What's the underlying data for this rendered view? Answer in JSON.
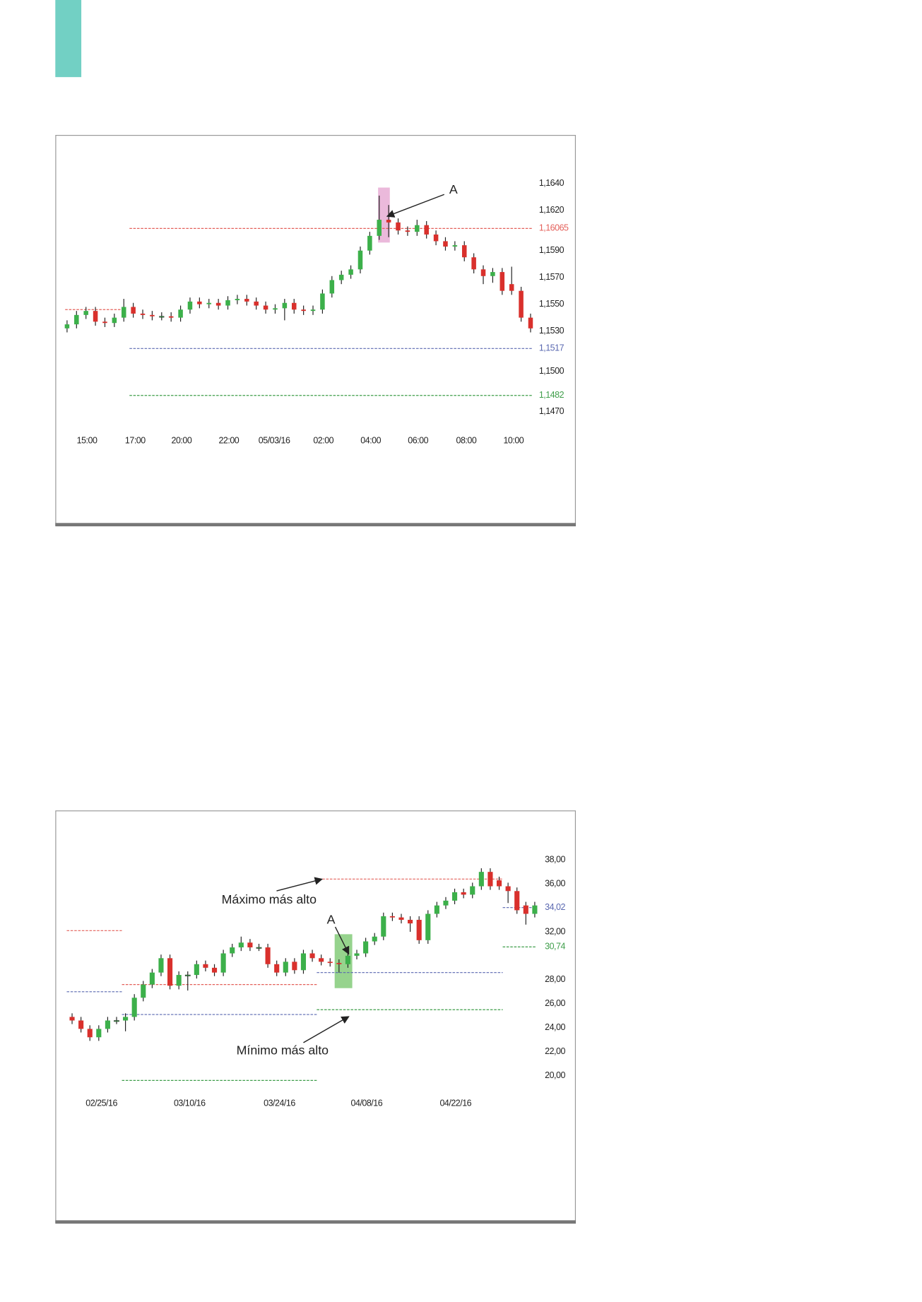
{
  "chart_data": [
    {
      "type": "candlestick",
      "up_color": "#3cb04a",
      "down_color": "#d9302c",
      "xlim": [
        0,
        49
      ],
      "xticks": [
        {
          "value": 2.1,
          "label": "15:00"
        },
        {
          "value": 7.2,
          "label": "17:00"
        },
        {
          "value": 12.1,
          "label": "20:00"
        },
        {
          "value": 17.1,
          "label": "22:00"
        },
        {
          "value": 21.9,
          "label": "05/03/16"
        },
        {
          "value": 27.1,
          "label": "02:00"
        },
        {
          "value": 32.1,
          "label": "04:00"
        },
        {
          "value": 37.1,
          "label": "06:00"
        },
        {
          "value": 42.2,
          "label": "08:00"
        },
        {
          "value": 47.2,
          "label": "10:00"
        }
      ],
      "ylim": [
        1.1458,
        1.1658
      ],
      "yticks": [
        {
          "value": 1.164,
          "label": "1,1640"
        },
        {
          "value": 1.162,
          "label": "1,1620"
        },
        {
          "value": 1.159,
          "label": "1,1590"
        },
        {
          "value": 1.157,
          "label": "1,1570"
        },
        {
          "value": 1.155,
          "label": "1,1550"
        },
        {
          "value": 1.153,
          "label": "1,1530"
        },
        {
          "value": 1.15,
          "label": "1,1500"
        },
        {
          "value": 1.147,
          "label": "1,1470"
        }
      ],
      "ohlc": [
        [
          1.1532,
          1.1538,
          1.1529,
          1.1535
        ],
        [
          1.1535,
          1.1545,
          1.1532,
          1.1542
        ],
        [
          1.1542,
          1.1548,
          1.1539,
          1.1545
        ],
        [
          1.1545,
          1.1548,
          1.1534,
          1.1537
        ],
        [
          1.1537,
          1.154,
          1.1533,
          1.1536
        ],
        [
          1.1536,
          1.1543,
          1.1533,
          1.154
        ],
        [
          1.154,
          1.1554,
          1.1537,
          1.1548
        ],
        [
          1.1548,
          1.1551,
          1.154,
          1.1543
        ],
        [
          1.1543,
          1.1546,
          1.1539,
          1.1542
        ],
        [
          1.1542,
          1.1545,
          1.1538,
          1.1541
        ],
        [
          1.1541,
          1.1544,
          1.1538,
          1.1541
        ],
        [
          1.1541,
          1.1544,
          1.1537,
          1.154
        ],
        [
          1.154,
          1.1549,
          1.1537,
          1.1546
        ],
        [
          1.1546,
          1.1555,
          1.1543,
          1.1552
        ],
        [
          1.1552,
          1.1555,
          1.1547,
          1.155
        ],
        [
          1.155,
          1.1554,
          1.1547,
          1.1551
        ],
        [
          1.1551,
          1.1554,
          1.1546,
          1.1549
        ],
        [
          1.1549,
          1.1556,
          1.1546,
          1.1553
        ],
        [
          1.1553,
          1.1557,
          1.155,
          1.1554
        ],
        [
          1.1554,
          1.1557,
          1.1549,
          1.1552
        ],
        [
          1.1552,
          1.1555,
          1.1546,
          1.1549
        ],
        [
          1.1549,
          1.1552,
          1.1543,
          1.1546
        ],
        [
          1.1546,
          1.155,
          1.1543,
          1.1547
        ],
        [
          1.1547,
          1.1554,
          1.1538,
          1.1551
        ],
        [
          1.1551,
          1.1554,
          1.1543,
          1.1546
        ],
        [
          1.1546,
          1.1549,
          1.1542,
          1.1545
        ],
        [
          1.1545,
          1.1549,
          1.1542,
          1.1546
        ],
        [
          1.1546,
          1.1561,
          1.1543,
          1.1558
        ],
        [
          1.1558,
          1.1571,
          1.1555,
          1.1568
        ],
        [
          1.1568,
          1.1575,
          1.1565,
          1.1572
        ],
        [
          1.1572,
          1.1579,
          1.1569,
          1.1576
        ],
        [
          1.1576,
          1.1593,
          1.1573,
          1.159
        ],
        [
          1.159,
          1.1604,
          1.1587,
          1.1601
        ],
        [
          1.1601,
          1.1631,
          1.1598,
          1.1613
        ],
        [
          1.1613,
          1.1624,
          1.16,
          1.1611
        ],
        [
          1.1611,
          1.1614,
          1.1602,
          1.1605
        ],
        [
          1.1605,
          1.1608,
          1.1601,
          1.1604
        ],
        [
          1.1604,
          1.1613,
          1.1601,
          1.1609
        ],
        [
          1.1609,
          1.1612,
          1.1599,
          1.1602
        ],
        [
          1.1602,
          1.1605,
          1.1594,
          1.1597
        ],
        [
          1.1597,
          1.16,
          1.159,
          1.1593
        ],
        [
          1.1593,
          1.1597,
          1.159,
          1.1594
        ],
        [
          1.1594,
          1.1597,
          1.1582,
          1.1585
        ],
        [
          1.1585,
          1.1588,
          1.1573,
          1.1576
        ],
        [
          1.1576,
          1.1579,
          1.1565,
          1.1571
        ],
        [
          1.1571,
          1.1577,
          1.1566,
          1.1574
        ],
        [
          1.1574,
          1.1577,
          1.1557,
          1.156
        ],
        [
          1.1565,
          1.1578,
          1.1557,
          1.156
        ],
        [
          1.156,
          1.1563,
          1.1537,
          1.154
        ],
        [
          1.154,
          1.1543,
          1.1529,
          1.1532
        ]
      ],
      "lines": [
        {
          "value": 1.16065,
          "label": "1,16065",
          "color": "#e4605a",
          "x_range": [
            6.6,
            49.2
          ]
        },
        {
          "value": 1.1517,
          "label": "1,1517",
          "color": "#5a68b0",
          "x_range": [
            6.6,
            49.2
          ]
        },
        {
          "value": 1.1482,
          "label": "1,1482",
          "color": "#3f9e4a",
          "x_range": [
            6.6,
            49.2
          ]
        },
        {
          "value": 1.1546,
          "color": "#e4605a",
          "x_range": [
            -0.2,
            6.2
          ]
        }
      ],
      "annotations": [
        "A"
      ]
    },
    {
      "type": "candlestick",
      "up_color": "#3cb04a",
      "down_color": "#d9302c",
      "xlim": [
        0,
        52
      ],
      "xticks": [
        {
          "value": 3.3,
          "label": "02/25/16"
        },
        {
          "value": 13.2,
          "label": "03/10/16"
        },
        {
          "value": 23.3,
          "label": "03/24/16"
        },
        {
          "value": 33.1,
          "label": "04/08/16"
        },
        {
          "value": 43.1,
          "label": "04/22/16"
        }
      ],
      "ylim": [
        18,
        40
      ],
      "yticks": [
        {
          "value": 38,
          "label": "38,00"
        },
        {
          "value": 36,
          "label": "36,00"
        },
        {
          "value": 32,
          "label": "32,00"
        },
        {
          "value": 28,
          "label": "28,00"
        },
        {
          "value": 26,
          "label": "26,00"
        },
        {
          "value": 24,
          "label": "24,00"
        },
        {
          "value": 22,
          "label": "22,00"
        },
        {
          "value": 20,
          "label": "20,00"
        }
      ],
      "ohlc": [
        [
          24.9,
          25.2,
          24.3,
          24.6
        ],
        [
          24.6,
          24.9,
          23.6,
          23.9
        ],
        [
          23.9,
          24.2,
          22.9,
          23.2
        ],
        [
          23.2,
          24.2,
          22.9,
          23.9
        ],
        [
          23.9,
          24.9,
          23.6,
          24.6
        ],
        [
          24.6,
          24.9,
          24.3,
          24.6
        ],
        [
          24.6,
          25.2,
          23.7,
          24.9
        ],
        [
          24.9,
          26.8,
          24.6,
          26.5
        ],
        [
          26.5,
          27.9,
          26.2,
          27.6
        ],
        [
          27.6,
          28.9,
          27.3,
          28.6
        ],
        [
          28.6,
          30.1,
          28.3,
          29.8
        ],
        [
          29.8,
          30.1,
          27.2,
          27.5
        ],
        [
          27.5,
          28.7,
          27.2,
          28.4
        ],
        [
          28.4,
          28.7,
          27.1,
          28.4
        ],
        [
          28.4,
          29.6,
          28.1,
          29.3
        ],
        [
          29.3,
          29.6,
          28.7,
          29.0
        ],
        [
          29.0,
          29.3,
          28.3,
          28.6
        ],
        [
          28.6,
          30.5,
          28.3,
          30.2
        ],
        [
          30.2,
          31.0,
          29.9,
          30.7
        ],
        [
          30.7,
          31.6,
          30.4,
          31.1
        ],
        [
          31.1,
          31.4,
          30.4,
          30.7
        ],
        [
          30.7,
          31.0,
          30.4,
          30.7
        ],
        [
          30.7,
          31.0,
          29.0,
          29.3
        ],
        [
          29.3,
          29.6,
          28.3,
          28.6
        ],
        [
          28.6,
          29.8,
          28.3,
          29.5
        ],
        [
          29.5,
          29.8,
          28.5,
          28.8
        ],
        [
          28.8,
          30.5,
          28.5,
          30.2
        ],
        [
          30.2,
          30.5,
          29.5,
          29.8
        ],
        [
          29.8,
          30.1,
          29.2,
          29.5
        ],
        [
          29.5,
          29.8,
          29.1,
          29.4
        ],
        [
          29.4,
          29.7,
          28.6,
          29.3
        ],
        [
          29.3,
          30.3,
          29.0,
          30.0
        ],
        [
          30.0,
          30.5,
          29.7,
          30.2
        ],
        [
          30.2,
          31.5,
          29.9,
          31.2
        ],
        [
          31.2,
          31.9,
          30.9,
          31.6
        ],
        [
          31.6,
          33.6,
          31.3,
          33.3
        ],
        [
          33.3,
          33.6,
          32.9,
          33.2
        ],
        [
          33.2,
          33.5,
          32.7,
          33.0
        ],
        [
          33.0,
          33.3,
          32.0,
          32.7
        ],
        [
          33.0,
          33.3,
          31.0,
          31.3
        ],
        [
          31.3,
          33.8,
          31.0,
          33.5
        ],
        [
          33.5,
          34.5,
          33.2,
          34.2
        ],
        [
          34.2,
          34.9,
          33.9,
          34.6
        ],
        [
          34.6,
          35.6,
          34.3,
          35.3
        ],
        [
          35.3,
          35.6,
          34.8,
          35.1
        ],
        [
          35.1,
          36.1,
          34.8,
          35.8
        ],
        [
          35.8,
          37.3,
          35.5,
          37.0
        ],
        [
          37.0,
          37.3,
          35.5,
          35.8
        ],
        [
          36.3,
          36.6,
          35.5,
          35.8
        ],
        [
          35.8,
          36.1,
          34.4,
          35.4
        ],
        [
          35.4,
          35.7,
          33.5,
          33.8
        ],
        [
          34.2,
          34.5,
          32.6,
          33.5
        ],
        [
          33.5,
          34.5,
          33.2,
          34.2
        ]
      ],
      "lines": [
        {
          "value": 36.4,
          "color": "#e4605a",
          "x_range": [
            27.7,
            48.4
          ]
        },
        {
          "value": 32.1,
          "color": "#e4605a",
          "x_range": [
            -0.6,
            5.6
          ]
        },
        {
          "value": 27.0,
          "color": "#5a68b0",
          "x_range": [
            -0.6,
            5.6
          ]
        },
        {
          "value": 27.6,
          "color": "#e4605a",
          "x_range": [
            5.6,
            27.5
          ]
        },
        {
          "value": 25.1,
          "color": "#5a68b0",
          "x_range": [
            5.6,
            27.5
          ]
        },
        {
          "value": 19.6,
          "color": "#3f9e4a",
          "x_range": [
            5.6,
            27.5
          ]
        },
        {
          "value": 28.6,
          "color": "#5a68b0",
          "x_range": [
            27.5,
            48.4
          ]
        },
        {
          "value": 25.5,
          "color": "#3f9e4a",
          "x_range": [
            27.5,
            48.4
          ]
        },
        {
          "value": 34.02,
          "label": "34,02",
          "color": "#5a68b0",
          "x_range": [
            48.4,
            52.2
          ]
        },
        {
          "value": 30.74,
          "label": "30,74",
          "color": "#3f9e4a",
          "x_range": [
            48.4,
            52.2
          ]
        }
      ],
      "annotations": [
        "Máximo más alto",
        "A",
        "Mínimo más alto"
      ]
    }
  ]
}
